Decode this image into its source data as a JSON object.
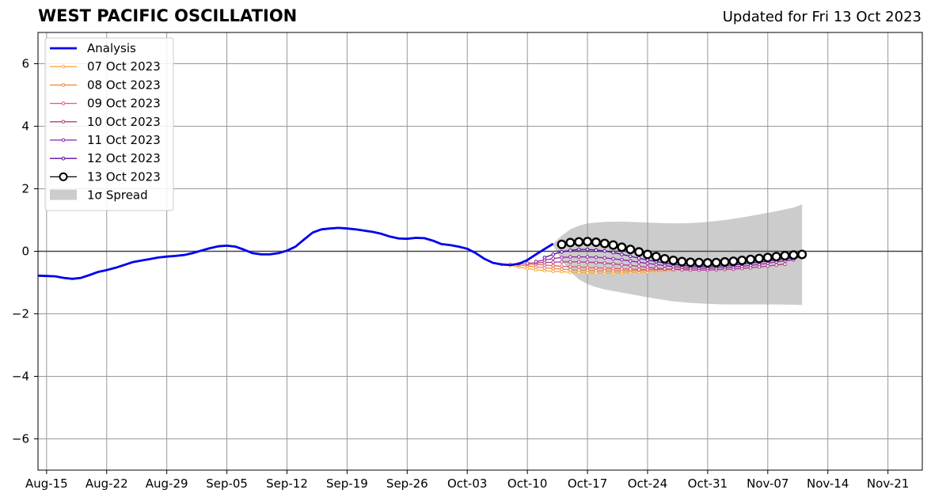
{
  "title": "WEST PACIFIC OSCILLATION",
  "updated": "Updated for Fri 13 Oct 2023",
  "chart_data": {
    "type": "line",
    "x_tick_labels": [
      "Aug-15",
      "Aug-22",
      "Aug-29",
      "Sep-05",
      "Sep-12",
      "Sep-19",
      "Sep-26",
      "Oct-03",
      "Oct-10",
      "Oct-17",
      "Oct-24",
      "Oct-31",
      "Nov-07",
      "Nov-14",
      "Nov-21"
    ],
    "x_tick_dates": [
      "2023-08-15",
      "2023-08-22",
      "2023-08-29",
      "2023-09-05",
      "2023-09-12",
      "2023-09-19",
      "2023-09-26",
      "2023-10-03",
      "2023-10-10",
      "2023-10-17",
      "2023-10-24",
      "2023-10-31",
      "2023-11-07",
      "2023-11-14",
      "2023-11-21"
    ],
    "xlim": [
      "2023-08-14",
      "2023-11-25"
    ],
    "ylim": [
      -7,
      7
    ],
    "y_ticks": [
      6,
      4,
      2,
      0,
      -2,
      -4,
      -6
    ],
    "y_tick_labels": [
      "6",
      "4",
      "2",
      "0",
      "−2",
      "−4",
      "−6"
    ],
    "grid": true,
    "zero_line": true,
    "legend_position": "upper-left",
    "analysis": {
      "name": "Analysis",
      "color": "#0000ee",
      "x": [
        "2023-08-14",
        "2023-08-15",
        "2023-08-16",
        "2023-08-17",
        "2023-08-18",
        "2023-08-19",
        "2023-08-20",
        "2023-08-21",
        "2023-08-22",
        "2023-08-23",
        "2023-08-24",
        "2023-08-25",
        "2023-08-26",
        "2023-08-27",
        "2023-08-28",
        "2023-08-29",
        "2023-08-30",
        "2023-08-31",
        "2023-09-01",
        "2023-09-02",
        "2023-09-03",
        "2023-09-04",
        "2023-09-05",
        "2023-09-06",
        "2023-09-07",
        "2023-09-08",
        "2023-09-09",
        "2023-09-10",
        "2023-09-11",
        "2023-09-12",
        "2023-09-13",
        "2023-09-14",
        "2023-09-15",
        "2023-09-16",
        "2023-09-17",
        "2023-09-18",
        "2023-09-19",
        "2023-09-20",
        "2023-09-21",
        "2023-09-22",
        "2023-09-23",
        "2023-09-24",
        "2023-09-25",
        "2023-09-26",
        "2023-09-27",
        "2023-09-28",
        "2023-09-29",
        "2023-09-30",
        "2023-10-01",
        "2023-10-02",
        "2023-10-03",
        "2023-10-04",
        "2023-10-05",
        "2023-10-06",
        "2023-10-07",
        "2023-10-08",
        "2023-10-09",
        "2023-10-10",
        "2023-10-11",
        "2023-10-12",
        "2023-10-13"
      ],
      "values": [
        -0.78,
        -0.79,
        -0.8,
        -0.85,
        -0.88,
        -0.85,
        -0.76,
        -0.66,
        -0.6,
        -0.53,
        -0.44,
        -0.35,
        -0.3,
        -0.25,
        -0.2,
        -0.17,
        -0.15,
        -0.12,
        -0.06,
        0.02,
        0.1,
        0.16,
        0.18,
        0.15,
        0.05,
        -0.06,
        -0.1,
        -0.1,
        -0.06,
        0.02,
        0.15,
        0.38,
        0.6,
        0.7,
        0.73,
        0.75,
        0.73,
        0.7,
        0.66,
        0.62,
        0.56,
        0.47,
        0.41,
        0.4,
        0.43,
        0.42,
        0.34,
        0.23,
        0.2,
        0.15,
        0.08,
        -0.06,
        -0.24,
        -0.37,
        -0.42,
        -0.44,
        -0.4,
        -0.28,
        -0.1,
        0.07,
        0.24
      ]
    },
    "forecasts": [
      {
        "name": "07 Oct 2023",
        "color": "#f9ac3d",
        "start": "2023-10-07",
        "values": [
          -0.42,
          -0.45,
          -0.5,
          -0.55,
          -0.59,
          -0.62,
          -0.64,
          -0.65,
          -0.67,
          -0.68,
          -0.69,
          -0.7,
          -0.7,
          -0.7,
          -0.69,
          -0.68,
          -0.67,
          -0.66,
          -0.64,
          -0.63,
          -0.62
        ]
      },
      {
        "name": "08 Oct 2023",
        "color": "#f0843d",
        "start": "2023-10-08",
        "values": [
          -0.42,
          -0.44,
          -0.47,
          -0.5,
          -0.53,
          -0.55,
          -0.57,
          -0.59,
          -0.6,
          -0.61,
          -0.62,
          -0.63,
          -0.63,
          -0.63,
          -0.62,
          -0.61,
          -0.6,
          -0.59,
          -0.58,
          -0.57,
          -0.56
        ]
      },
      {
        "name": "09 Oct 2023",
        "color": "#de5f68",
        "start": "2023-10-09",
        "values": [
          -0.4,
          -0.41,
          -0.42,
          -0.44,
          -0.46,
          -0.48,
          -0.49,
          -0.5,
          -0.52,
          -0.53,
          -0.54,
          -0.55,
          -0.56,
          -0.57,
          -0.58,
          -0.58,
          -0.58,
          -0.58,
          -0.57,
          -0.57,
          -0.56
        ]
      },
      {
        "name": "10 Oct 2023",
        "color": "#b63a8a",
        "start": "2023-10-10",
        "values": [
          -0.38,
          -0.37,
          -0.36,
          -0.35,
          -0.34,
          -0.34,
          -0.34,
          -0.35,
          -0.36,
          -0.38,
          -0.4,
          -0.43,
          -0.45,
          -0.48,
          -0.51,
          -0.54,
          -0.56,
          -0.58,
          -0.59,
          -0.6,
          -0.6,
          -0.6,
          -0.59,
          -0.58,
          -0.57,
          -0.55,
          -0.53,
          -0.5,
          -0.47,
          -0.44,
          -0.41
        ]
      },
      {
        "name": "11 Oct 2023",
        "color": "#8e1ea8",
        "start": "2023-10-11",
        "values": [
          -0.33,
          -0.28,
          -0.23,
          -0.2,
          -0.18,
          -0.18,
          -0.18,
          -0.19,
          -0.21,
          -0.24,
          -0.27,
          -0.31,
          -0.35,
          -0.39,
          -0.42,
          -0.46,
          -0.49,
          -0.51,
          -0.53,
          -0.54,
          -0.54,
          -0.53,
          -0.52,
          -0.5,
          -0.48,
          -0.45,
          -0.42,
          -0.38,
          -0.34,
          -0.3,
          -0.27
        ]
      },
      {
        "name": "12 Oct 2023",
        "color": "#5b0aa4",
        "start": "2023-10-12",
        "values": [
          -0.2,
          -0.1,
          -0.02,
          0.03,
          0.06,
          0.06,
          0.04,
          0.01,
          -0.04,
          -0.1,
          -0.16,
          -0.22,
          -0.28,
          -0.33,
          -0.38,
          -0.42,
          -0.45,
          -0.47,
          -0.48,
          -0.48,
          -0.47,
          -0.46,
          -0.44,
          -0.41,
          -0.38,
          -0.35,
          -0.31,
          -0.27,
          -0.24,
          -0.21,
          -0.18
        ]
      },
      {
        "name": "13 Oct 2023",
        "color": "#000000",
        "start": "2023-10-14",
        "values": [
          0.22,
          0.28,
          0.3,
          0.31,
          0.29,
          0.25,
          0.2,
          0.13,
          0.06,
          -0.02,
          -0.1,
          -0.17,
          -0.24,
          -0.29,
          -0.33,
          -0.35,
          -0.36,
          -0.37,
          -0.36,
          -0.34,
          -0.32,
          -0.29,
          -0.26,
          -0.23,
          -0.2,
          -0.17,
          -0.14,
          -0.12,
          -0.1
        ]
      }
    ],
    "spread": {
      "name": "1σ Spread",
      "color": "#cccccc",
      "x_start": "2023-10-13",
      "x_end": "2023-11-11",
      "x": [
        0,
        1,
        2,
        3,
        4,
        5,
        6,
        8,
        10,
        12,
        14,
        16,
        18,
        20,
        22,
        24,
        26,
        28,
        29
      ],
      "upper": [
        0.25,
        0.5,
        0.7,
        0.82,
        0.89,
        0.92,
        0.94,
        0.95,
        0.93,
        0.91,
        0.89,
        0.9,
        0.94,
        1.0,
        1.08,
        1.18,
        1.28,
        1.4,
        1.5
      ],
      "lower": [
        0.2,
        -0.3,
        -0.65,
        -0.9,
        -1.05,
        -1.15,
        -1.22,
        -1.32,
        -1.42,
        -1.52,
        -1.6,
        -1.65,
        -1.68,
        -1.7,
        -1.7,
        -1.7,
        -1.7,
        -1.71,
        -1.72
      ]
    }
  }
}
